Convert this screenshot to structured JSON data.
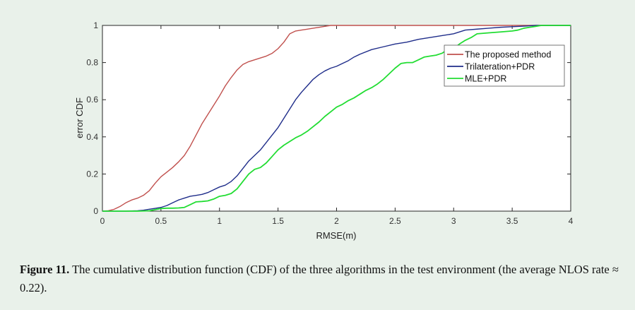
{
  "chart_data": {
    "type": "line",
    "xlabel": "RMSE(m)",
    "ylabel": "error CDF",
    "xlim": [
      0,
      4
    ],
    "ylim": [
      0,
      1
    ],
    "xticks": [
      0,
      0.5,
      1,
      1.5,
      2,
      2.5,
      3,
      3.5,
      4
    ],
    "xtick_labels": [
      "0",
      "0.5",
      "1",
      "1.5",
      "2",
      "2.5",
      "3",
      "3.5",
      "4"
    ],
    "yticks": [
      0,
      0.2,
      0.4,
      0.6,
      0.8,
      1
    ],
    "ytick_labels": [
      "0",
      "0.2",
      "0.4",
      "0.6",
      "0.8",
      "1"
    ],
    "grid": false,
    "legend_position": "upper-right",
    "series": [
      {
        "name": "The proposed method",
        "color": "#c0504d",
        "x": [
          0,
          0.05,
          0.1,
          0.15,
          0.2,
          0.25,
          0.3,
          0.35,
          0.4,
          0.45,
          0.5,
          0.55,
          0.6,
          0.65,
          0.7,
          0.75,
          0.8,
          0.85,
          0.9,
          0.95,
          1.0,
          1.05,
          1.1,
          1.15,
          1.2,
          1.25,
          1.3,
          1.35,
          1.4,
          1.45,
          1.5,
          1.55,
          1.6,
          1.65,
          1.7,
          1.75,
          1.8,
          1.85,
          1.9,
          1.95,
          2.0,
          2.2,
          2.5,
          3.0,
          3.5,
          4.0
        ],
        "y": [
          0,
          0.002,
          0.01,
          0.025,
          0.045,
          0.06,
          0.07,
          0.085,
          0.11,
          0.15,
          0.185,
          0.21,
          0.235,
          0.265,
          0.3,
          0.35,
          0.41,
          0.47,
          0.52,
          0.57,
          0.62,
          0.675,
          0.72,
          0.76,
          0.79,
          0.805,
          0.815,
          0.825,
          0.835,
          0.85,
          0.875,
          0.91,
          0.955,
          0.97,
          0.975,
          0.98,
          0.985,
          0.99,
          0.995,
          1.0,
          1.0,
          1.0,
          1.0,
          1.0,
          1.0,
          1.0
        ]
      },
      {
        "name": "Trilateration+PDR",
        "color": "#1f2d8a",
        "x": [
          0,
          0.1,
          0.2,
          0.3,
          0.35,
          0.4,
          0.45,
          0.5,
          0.55,
          0.6,
          0.65,
          0.7,
          0.75,
          0.8,
          0.85,
          0.9,
          0.95,
          1.0,
          1.05,
          1.1,
          1.15,
          1.2,
          1.25,
          1.3,
          1.35,
          1.4,
          1.45,
          1.5,
          1.55,
          1.6,
          1.65,
          1.7,
          1.75,
          1.8,
          1.85,
          1.9,
          1.95,
          2.0,
          2.05,
          2.1,
          2.15,
          2.2,
          2.3,
          2.4,
          2.5,
          2.6,
          2.7,
          2.8,
          2.9,
          3.0,
          3.1,
          3.2,
          3.3,
          3.4,
          3.5,
          3.6,
          3.65,
          3.7,
          4.0
        ],
        "y": [
          0,
          0,
          0,
          0.002,
          0.005,
          0.01,
          0.015,
          0.02,
          0.03,
          0.045,
          0.06,
          0.07,
          0.08,
          0.085,
          0.09,
          0.1,
          0.115,
          0.13,
          0.14,
          0.16,
          0.19,
          0.23,
          0.27,
          0.3,
          0.33,
          0.37,
          0.41,
          0.45,
          0.5,
          0.55,
          0.6,
          0.64,
          0.675,
          0.71,
          0.735,
          0.755,
          0.77,
          0.78,
          0.795,
          0.81,
          0.83,
          0.845,
          0.87,
          0.885,
          0.9,
          0.91,
          0.925,
          0.935,
          0.945,
          0.955,
          0.975,
          0.98,
          0.985,
          0.99,
          0.993,
          0.996,
          0.998,
          1.0,
          1.0
        ]
      },
      {
        "name": "MLE+PDR",
        "color": "#22dd33",
        "x": [
          0,
          0.2,
          0.3,
          0.4,
          0.45,
          0.5,
          0.55,
          0.6,
          0.65,
          0.7,
          0.75,
          0.8,
          0.85,
          0.9,
          0.95,
          1.0,
          1.05,
          1.1,
          1.15,
          1.2,
          1.25,
          1.3,
          1.35,
          1.4,
          1.45,
          1.5,
          1.55,
          1.6,
          1.65,
          1.7,
          1.75,
          1.8,
          1.85,
          1.9,
          1.95,
          2.0,
          2.05,
          2.1,
          2.15,
          2.2,
          2.25,
          2.3,
          2.35,
          2.4,
          2.45,
          2.5,
          2.55,
          2.6,
          2.65,
          2.7,
          2.75,
          2.8,
          2.85,
          2.9,
          2.95,
          3.0,
          3.05,
          3.1,
          3.15,
          3.2,
          3.3,
          3.4,
          3.5,
          3.55,
          3.6,
          3.65,
          3.7,
          3.75,
          4.0
        ],
        "y": [
          0,
          0,
          0,
          0.002,
          0.008,
          0.014,
          0.016,
          0.016,
          0.017,
          0.02,
          0.035,
          0.05,
          0.052,
          0.055,
          0.065,
          0.08,
          0.085,
          0.095,
          0.12,
          0.16,
          0.2,
          0.225,
          0.235,
          0.26,
          0.295,
          0.33,
          0.355,
          0.375,
          0.395,
          0.41,
          0.43,
          0.455,
          0.48,
          0.51,
          0.535,
          0.56,
          0.575,
          0.595,
          0.61,
          0.63,
          0.65,
          0.665,
          0.685,
          0.71,
          0.74,
          0.77,
          0.795,
          0.8,
          0.8,
          0.815,
          0.83,
          0.835,
          0.84,
          0.85,
          0.87,
          0.875,
          0.9,
          0.92,
          0.935,
          0.955,
          0.96,
          0.965,
          0.97,
          0.975,
          0.985,
          0.99,
          0.995,
          1.0,
          1.0
        ]
      }
    ]
  },
  "caption": {
    "title": "Figure 11.",
    "text": " The cumulative distribution function (CDF) of the three algorithms in the test environment (the average NLOS rate ≈ 0.22)."
  }
}
